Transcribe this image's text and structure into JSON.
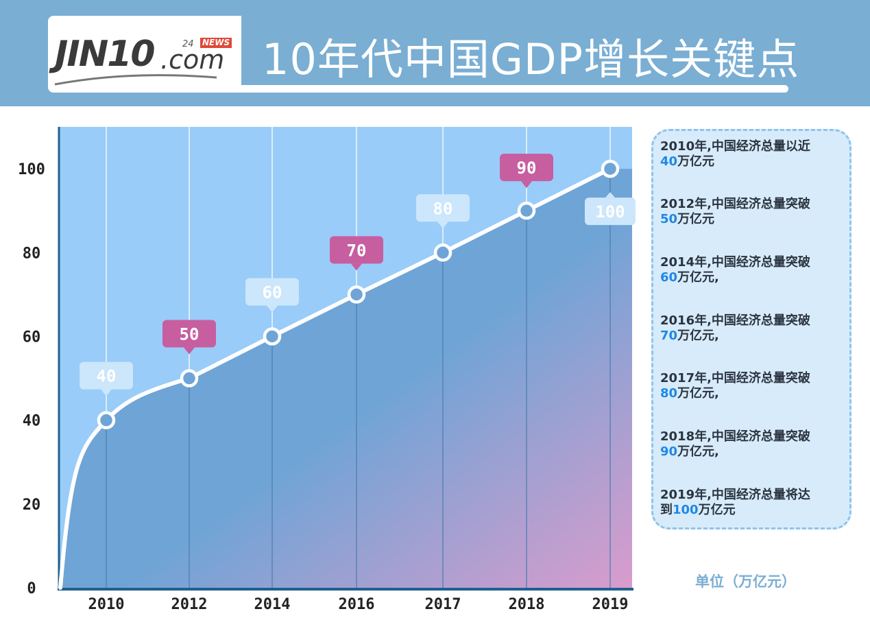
{
  "header": {
    "logo": {
      "main": "JIN10",
      "suffix": ".com",
      "tag_prefix": "24",
      "tag": "NEWS"
    },
    "title": "10年代中国GDP增长关键点"
  },
  "colors": {
    "header_bg": "#7aaed3",
    "plot_bg": "#99ccf8",
    "area_top": "#6fa4d6",
    "area_bottom_right": "#d99ccc",
    "line": "#ffffff",
    "label_blue": "#cce6fb",
    "label_pink": "#c75ea0",
    "axis": "#1f5f8e",
    "highlight": "#1e88e5"
  },
  "chart_data": {
    "type": "area",
    "title": "10年代中国GDP增长关键点",
    "xlabel": "",
    "ylabel": "",
    "categories": [
      "2010",
      "2012",
      "2014",
      "2016",
      "2017",
      "2018",
      "2019"
    ],
    "values": [
      40,
      50,
      60,
      70,
      80,
      90,
      100
    ],
    "data_labels": [
      "40",
      "50",
      "60",
      "70",
      "80",
      "90",
      "100"
    ],
    "label_styles": [
      "blue",
      "pink",
      "blue",
      "pink",
      "blue",
      "pink",
      "blue"
    ],
    "yticks": [
      "0",
      "20",
      "40",
      "60",
      "80",
      "100"
    ],
    "ylim": [
      0,
      110
    ],
    "grid": "vertical",
    "unit": "单位（万亿元）"
  },
  "sidebar": {
    "notes": [
      {
        "text": "2010年,中国经济总量以近",
        "value": "40",
        "suffix": "万亿元"
      },
      {
        "text": "2012年,中国经济总量突破",
        "value": "50",
        "suffix": "万亿元"
      },
      {
        "text": "2014年,中国经济总量突破",
        "value": "60",
        "suffix": "万亿元,"
      },
      {
        "text": "2016年,中国经济总量突破",
        "value": "70",
        "suffix": "万亿元,"
      },
      {
        "text": "2017年,中国经济总量突破",
        "value": "80",
        "suffix": "万亿元,"
      },
      {
        "text": "2018年,中国经济总量突破",
        "value": "90",
        "suffix": "万亿元,"
      },
      {
        "text": "2019年,中国经济总量将达",
        "prefix": "到",
        "value": "100",
        "suffix": "万亿元"
      }
    ]
  }
}
